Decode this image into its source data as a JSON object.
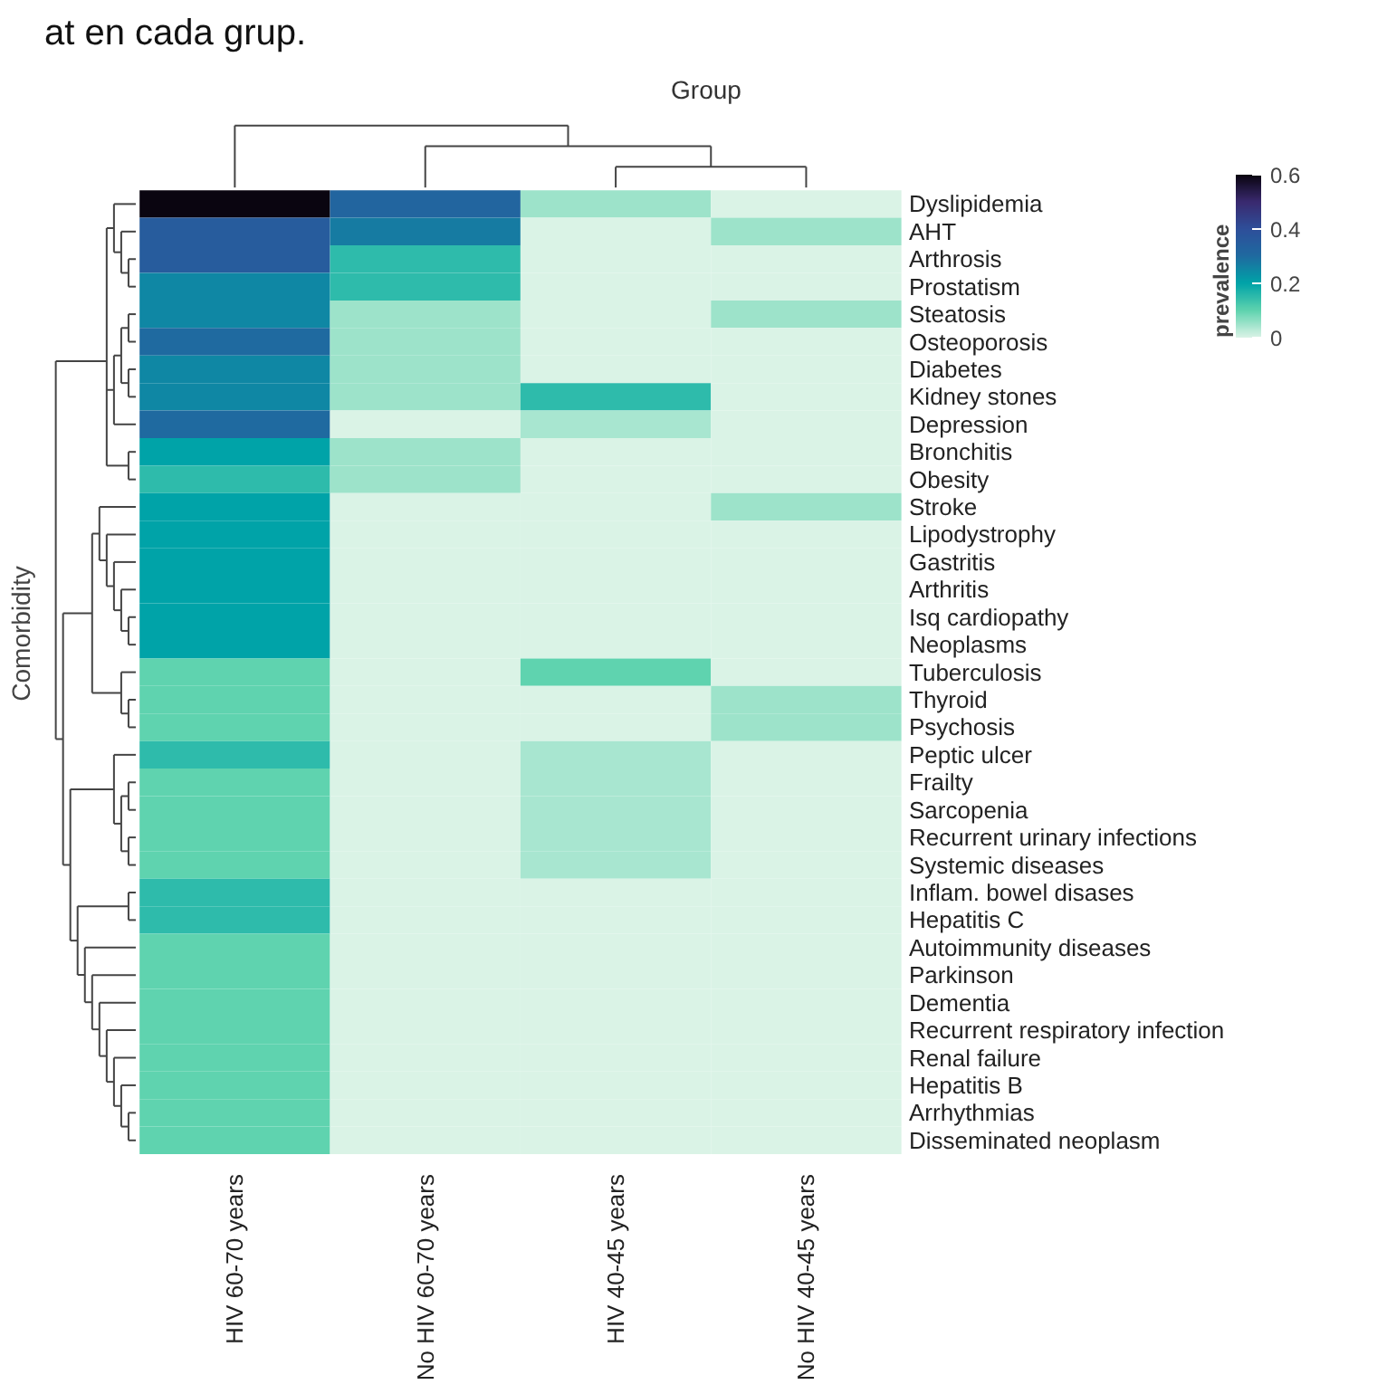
{
  "chart_data": {
    "type": "heatmap",
    "title": "Group",
    "ylabel": "Comorbidity",
    "clabel": "prevalence",
    "annotations": [
      "at en cada grup."
    ],
    "categories": [
      "HIV 60-70 years",
      "No HIV 60-70 years",
      "HIV 40-45 years",
      "No HIV 40-45 years"
    ],
    "y_categories": [
      "Dyslipidemia",
      "AHT",
      "Arthrosis",
      "Prostatism",
      "Steatosis",
      "Osteoporosis",
      "Diabetes",
      "Kidney stones",
      "Depression",
      "Bronchitis",
      "Obesity",
      "Stroke",
      "Lipodystrophy",
      "Gastritis",
      "Arthritis",
      "Isq cardiopathy",
      "Neoplasms",
      "Tuberculosis",
      "Thyroid",
      "Psychosis",
      "Peptic ulcer",
      "Frailty",
      "Sarcopenia",
      "Recurrent urinary infections",
      "Systemic diseases",
      "Inflam. bowel disases",
      "Hepatitis C",
      "Autoimmunity diseases",
      "Parkinson",
      "Dementia",
      "Recurrent respiratory infection",
      "Renal failure",
      "Hepatitis B",
      "Arrhythmias",
      "Disseminated neoplasm"
    ],
    "cells": [
      [
        0.6,
        0.32,
        0.05,
        0
      ],
      [
        0.35,
        0.27,
        0,
        0.05
      ],
      [
        0.35,
        0.15,
        0,
        0
      ],
      [
        0.25,
        0.15,
        0,
        0
      ],
      [
        0.25,
        0.05,
        0,
        0.05
      ],
      [
        0.3,
        0.05,
        0,
        0
      ],
      [
        0.25,
        0.05,
        0,
        0
      ],
      [
        0.25,
        0.05,
        0.15,
        0
      ],
      [
        0.3,
        0,
        0.04,
        0
      ],
      [
        0.2,
        0.05,
        0,
        0
      ],
      [
        0.15,
        0.05,
        0,
        0
      ],
      [
        0.2,
        0,
        0,
        0.05
      ],
      [
        0.2,
        0,
        0,
        0
      ],
      [
        0.2,
        0,
        0,
        0
      ],
      [
        0.2,
        0,
        0,
        0
      ],
      [
        0.2,
        0,
        0,
        0
      ],
      [
        0.2,
        0,
        0,
        0
      ],
      [
        0.1,
        0,
        0.1,
        0
      ],
      [
        0.1,
        0,
        0,
        0.05
      ],
      [
        0.1,
        0,
        0,
        0.05
      ],
      [
        0.15,
        0,
        0.04,
        0
      ],
      [
        0.1,
        0,
        0.04,
        0
      ],
      [
        0.1,
        0,
        0.04,
        0
      ],
      [
        0.1,
        0,
        0.04,
        0
      ],
      [
        0.1,
        0,
        0.04,
        0
      ],
      [
        0.15,
        0,
        0,
        0
      ],
      [
        0.15,
        0,
        0,
        0
      ],
      [
        0.1,
        0,
        0,
        0
      ],
      [
        0.1,
        0,
        0,
        0
      ],
      [
        0.1,
        0,
        0,
        0
      ],
      [
        0.1,
        0,
        0,
        0
      ],
      [
        0.1,
        0,
        0,
        0
      ],
      [
        0.1,
        0,
        0,
        0
      ],
      [
        0.1,
        0,
        0,
        0
      ],
      [
        0.1,
        0,
        0,
        0
      ]
    ],
    "clim": [
      0,
      0.6
    ],
    "cticks": [
      0,
      0.2,
      0.4,
      0.6
    ]
  }
}
